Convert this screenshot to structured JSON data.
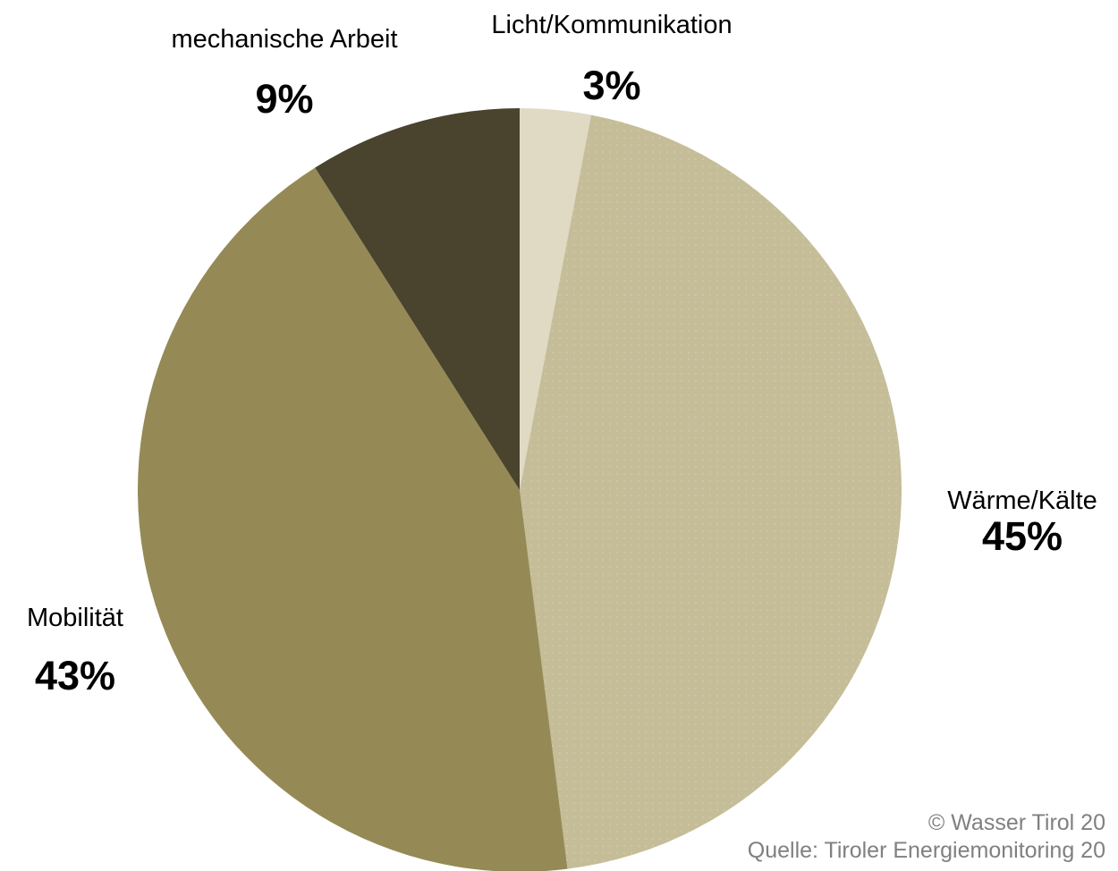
{
  "chart_data": {
    "type": "pie",
    "start": "12 o'clock",
    "direction": "clockwise",
    "slices": [
      {
        "label": "Licht/Kommunikation",
        "value": 3,
        "value_label": "3%",
        "color": "#e0d9c3"
      },
      {
        "label": "Wärme/Kälte",
        "value": 45,
        "value_label": "45%",
        "color": "#c5bd98"
      },
      {
        "label": "Mobilität",
        "value": 43,
        "value_label": "43%",
        "color": "#958a55"
      },
      {
        "label": "mechanische Arbeit",
        "value": 9,
        "value_label": "9%",
        "color": "#4a432d"
      }
    ]
  },
  "footer": {
    "copyright": "© Wasser Tirol 20",
    "source": "Quelle: Tiroler Energiemonitoring 20"
  }
}
